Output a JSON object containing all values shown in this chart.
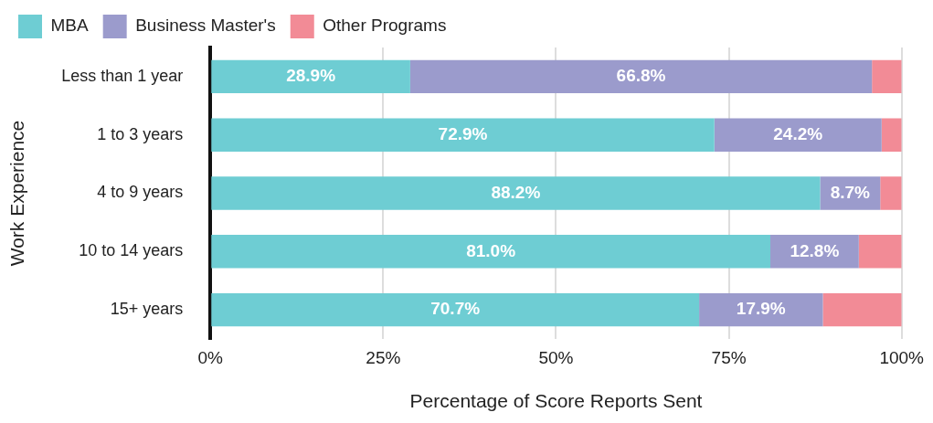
{
  "chart_data": {
    "type": "bar",
    "orientation": "horizontal",
    "stacked": true,
    "xlabel": "Percentage of Score Reports Sent",
    "ylabel": "Work Experience",
    "categories": [
      "Less than 1 year",
      "1 to 3 years",
      "4 to 9 years",
      "10 to 14 years",
      "15+ years"
    ],
    "series": [
      {
        "name": "MBA",
        "color": "#6ecdd3",
        "values": [
          28.9,
          72.9,
          88.2,
          81.0,
          70.7
        ],
        "value_labels": [
          "28.9%",
          "72.9%",
          "88.2%",
          "81.0%",
          "70.7%"
        ]
      },
      {
        "name": "Business Master's",
        "color": "#9b9bcc",
        "values": [
          66.8,
          24.2,
          8.7,
          12.8,
          17.9
        ],
        "value_labels": [
          "66.8%",
          "24.2%",
          "8.7%",
          "12.8%",
          "17.9%"
        ]
      },
      {
        "name": "Other Programs",
        "color": "#f28b96",
        "values": [
          4.3,
          2.9,
          3.1,
          6.2,
          11.4
        ],
        "value_labels": [
          null,
          null,
          null,
          null,
          null
        ]
      }
    ],
    "xlim": [
      0,
      100
    ],
    "xticks": [
      {
        "value": 0,
        "label": "0%"
      },
      {
        "value": 25,
        "label": "25%"
      },
      {
        "value": 50,
        "label": "50%"
      },
      {
        "value": 75,
        "label": "75%"
      },
      {
        "value": 100,
        "label": "100%"
      }
    ],
    "grid": "x",
    "legend": "top left"
  }
}
